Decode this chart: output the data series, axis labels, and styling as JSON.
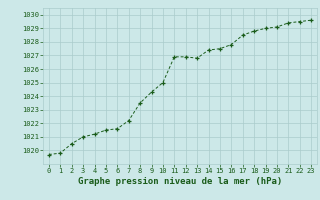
{
  "x": [
    0,
    1,
    2,
    3,
    4,
    5,
    6,
    7,
    8,
    9,
    10,
    11,
    12,
    13,
    14,
    15,
    16,
    17,
    18,
    19,
    20,
    21,
    22,
    23
  ],
  "y": [
    1019.7,
    1019.8,
    1020.5,
    1021.0,
    1021.2,
    1021.5,
    1021.6,
    1022.2,
    1023.5,
    1024.3,
    1025.0,
    1026.9,
    1026.9,
    1026.8,
    1027.4,
    1027.5,
    1027.8,
    1028.5,
    1028.8,
    1029.0,
    1029.1,
    1029.4,
    1029.5,
    1029.6
  ],
  "bg_color": "#cce8e8",
  "grid_color": "#aacccc",
  "line_color": "#1a5c1a",
  "marker_color": "#1a5c1a",
  "tick_label_color": "#1a5c1a",
  "axis_label_color": "#1a5c1a",
  "xlabel": "Graphe pression niveau de la mer (hPa)",
  "ylim": [
    1019.0,
    1030.5
  ],
  "yticks": [
    1020,
    1021,
    1022,
    1023,
    1024,
    1025,
    1026,
    1027,
    1028,
    1029,
    1030
  ],
  "xlim": [
    -0.5,
    23.5
  ],
  "xticks": [
    0,
    1,
    2,
    3,
    4,
    5,
    6,
    7,
    8,
    9,
    10,
    11,
    12,
    13,
    14,
    15,
    16,
    17,
    18,
    19,
    20,
    21,
    22,
    23
  ],
  "tick_fontsize": 5.0,
  "label_fontsize": 6.5
}
